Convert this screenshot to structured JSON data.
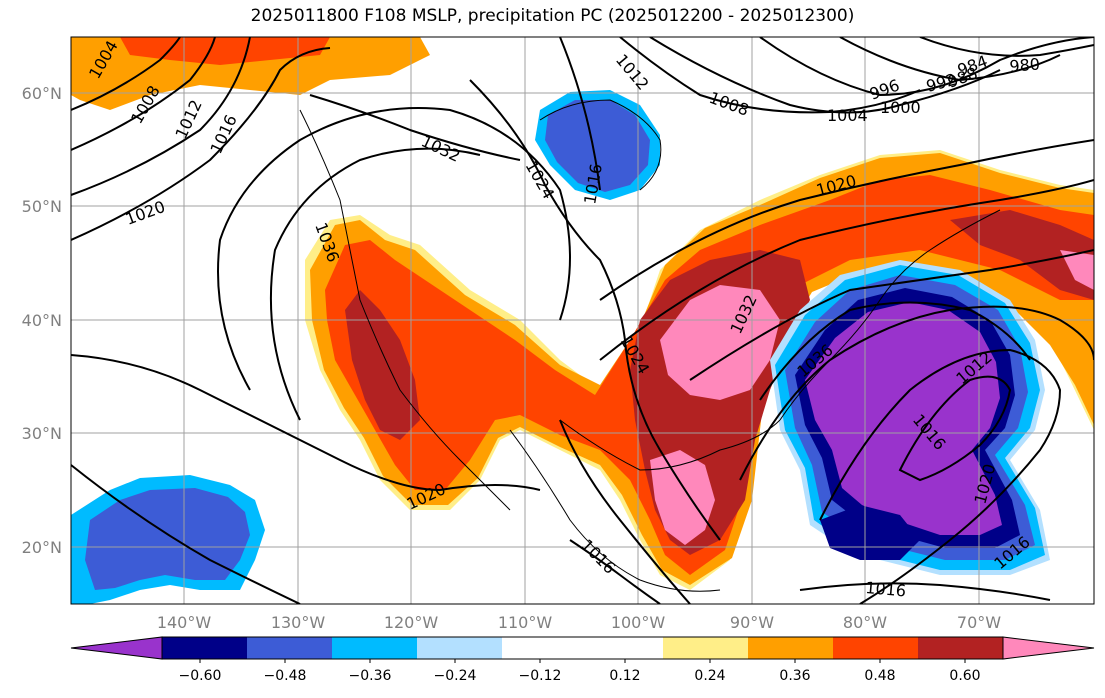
{
  "title": "2025011800 F108 MSLP, precipitation PC (2025012200 - 2025012300)",
  "colors": {
    "purple": "#9933cc",
    "navy": "#000088",
    "royal_blue": "#3d5cd6",
    "deep_sky": "#00bbff",
    "light_blue": "#b3e0ff",
    "white": "#ffffff",
    "light_yellow": "#ffee88",
    "orange": "#ff9f00",
    "red_orange": "#ff4400",
    "dark_red": "#b22222",
    "pink": "#ff88bb"
  },
  "lat_labels": [
    "60°N",
    "50°N",
    "40°N",
    "30°N",
    "20°N"
  ],
  "lon_labels": [
    "140°W",
    "130°W",
    "120°W",
    "110°W",
    "100°W",
    "90°W",
    "80°W",
    "70°W"
  ],
  "colorbar": {
    "ticks": [
      "−0.60",
      "−0.48",
      "−0.36",
      "−0.24",
      "−0.12",
      "0.12",
      "0.24",
      "0.36",
      "0.48",
      "0.60"
    ]
  },
  "isobar_labels": [
    "1004",
    "1008",
    "1012",
    "1016",
    "1020",
    "1032",
    "1036",
    "1024",
    "1016",
    "1012",
    "1008",
    "1004",
    "1000",
    "996",
    "992",
    "988",
    "984",
    "980",
    "1020",
    "1032",
    "1024",
    "1036",
    "1016",
    "1012",
    "1020",
    "1016",
    "1016",
    "1020",
    "1016"
  ]
}
